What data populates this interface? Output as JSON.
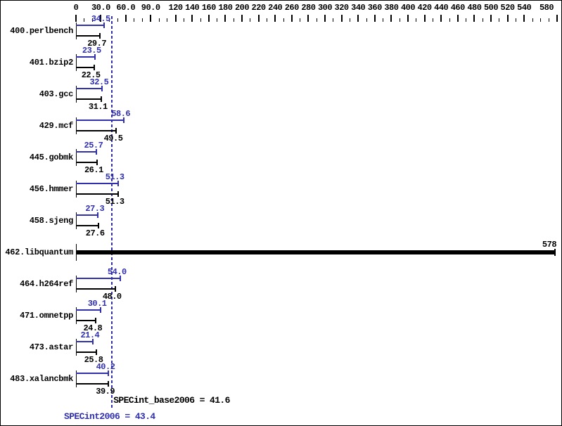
{
  "colors": {
    "peak_blue": "#3030ae",
    "base_black": "#000000",
    "background": "#ffffff",
    "border": "#000000"
  },
  "chart_data": {
    "type": "bar",
    "orientation": "horizontal",
    "title": "",
    "xlabel": "",
    "ylabel": "",
    "xlim": [
      0,
      580
    ],
    "grid": false,
    "legend_position": "none",
    "axis_position": "top",
    "axis_major_ticks": [
      {
        "v": 0,
        "label": "0"
      },
      {
        "v": 30,
        "label": "30.0"
      },
      {
        "v": 60,
        "label": "60.0"
      },
      {
        "v": 90,
        "label": "90.0"
      },
      {
        "v": 120,
        "label": "120"
      },
      {
        "v": 140,
        "label": "140"
      },
      {
        "v": 160,
        "label": "160"
      },
      {
        "v": 180,
        "label": "180"
      },
      {
        "v": 200,
        "label": "200"
      },
      {
        "v": 220,
        "label": "220"
      },
      {
        "v": 240,
        "label": "240"
      },
      {
        "v": 260,
        "label": "260"
      },
      {
        "v": 280,
        "label": "280"
      },
      {
        "v": 300,
        "label": "300"
      },
      {
        "v": 320,
        "label": "320"
      },
      {
        "v": 340,
        "label": "340"
      },
      {
        "v": 360,
        "label": "360"
      },
      {
        "v": 380,
        "label": "380"
      },
      {
        "v": 400,
        "label": "400"
      },
      {
        "v": 420,
        "label": "420"
      },
      {
        "v": 440,
        "label": "440"
      },
      {
        "v": 460,
        "label": "460"
      },
      {
        "v": 480,
        "label": "480"
      },
      {
        "v": 500,
        "label": "500"
      },
      {
        "v": 520,
        "label": "520"
      },
      {
        "v": 540,
        "label": "540"
      },
      {
        "v": 580,
        "label": "580"
      }
    ],
    "axis_minor_tick_step": 10,
    "categories": [
      "400.perlbench",
      "401.bzip2",
      "403.gcc",
      "429.mcf",
      "445.gobmk",
      "456.hmmer",
      "458.sjeng",
      "462.libquantum",
      "464.h264ref",
      "471.omnetpp",
      "473.astar",
      "483.xalancbmk"
    ],
    "series": [
      {
        "name": "SPECint2006 (peak)",
        "color": "#3030ae",
        "values": [
          34.5,
          23.5,
          32.5,
          58.6,
          25.7,
          51.3,
          27.3,
          578,
          54.0,
          30.1,
          21.4,
          40.2
        ],
        "labels": [
          "34.5",
          "23.5",
          "32.5",
          "58.6",
          "25.7",
          "51.3",
          "27.3",
          "578",
          "54.0",
          "30.1",
          "21.4",
          "40.2"
        ]
      },
      {
        "name": "SPECint_base2006 (base)",
        "color": "#000000",
        "values": [
          29.7,
          22.5,
          31.1,
          49.5,
          26.1,
          51.3,
          27.6,
          578,
          48.0,
          24.8,
          25.8,
          39.9
        ],
        "labels": [
          "29.7",
          "22.5",
          "31.1",
          "49.5",
          "26.1",
          "51.3",
          "27.6",
          "578",
          "48.0",
          "24.8",
          "25.8",
          "39.9"
        ]
      }
    ],
    "single_bar_categories": [
      "462.libquantum"
    ],
    "reference_line": {
      "value": 43.4,
      "color": "#3030ae",
      "style": "dotted"
    },
    "summary": {
      "base_text": "SPECint_base2006 = 41.6",
      "base_value": 41.6,
      "peak_text": "SPECint2006 = 43.4",
      "peak_value": 43.4
    }
  }
}
